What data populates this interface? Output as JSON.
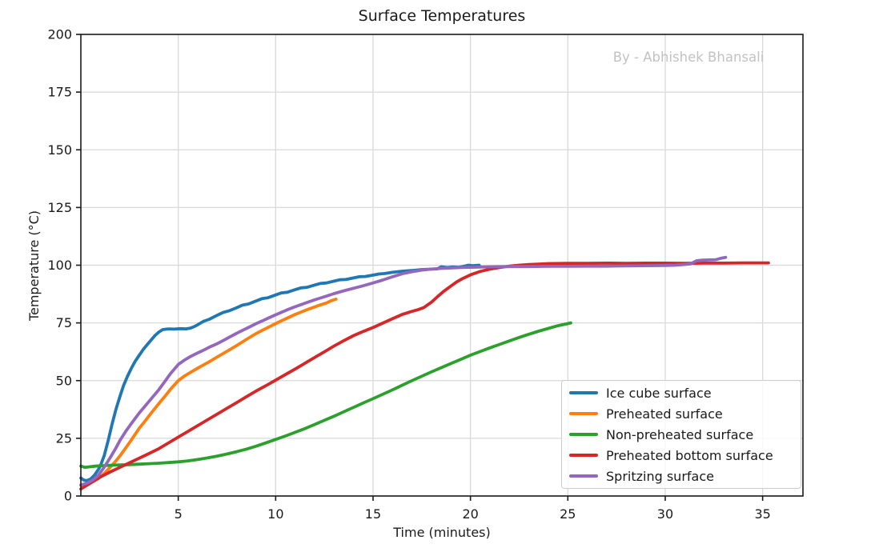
{
  "figure": {
    "title": "Surface Temperatures",
    "watermark": "By - Abhishek Bhansali",
    "xlabel": "Time (minutes)",
    "ylabel": "Temperature (°C)"
  },
  "chart_data": {
    "type": "line",
    "title": "Surface Temperatures",
    "xlabel": "Time (minutes)",
    "ylabel": "Temperature (°C)",
    "xlim": [
      0,
      37.07
    ],
    "ylim": [
      0,
      200
    ],
    "xticks": [
      5,
      10,
      15,
      20,
      25,
      30,
      35
    ],
    "yticks": [
      0,
      25,
      50,
      75,
      100,
      125,
      150,
      175,
      200
    ],
    "grid": true,
    "legend_position": "lower right",
    "grid_color": "#d9d9d9",
    "axis_color": "#1a1a1a",
    "watermark": "By - Abhishek Bhansali",
    "series": [
      {
        "name": "Ice cube surface",
        "color": "#1f77b4",
        "points": [
          [
            0,
            7.8
          ],
          [
            0.15,
            6.9
          ],
          [
            0.3,
            6.7
          ],
          [
            0.5,
            7.4
          ],
          [
            0.7,
            9
          ],
          [
            0.9,
            11.5
          ],
          [
            1,
            13
          ],
          [
            1.2,
            17.5
          ],
          [
            1.4,
            24
          ],
          [
            1.6,
            31
          ],
          [
            1.8,
            37.5
          ],
          [
            2,
            43
          ],
          [
            2.2,
            48
          ],
          [
            2.4,
            52
          ],
          [
            2.6,
            55.5
          ],
          [
            2.8,
            58.5
          ],
          [
            3,
            61
          ],
          [
            3.2,
            63.5
          ],
          [
            3.4,
            65.5
          ],
          [
            3.6,
            67.5
          ],
          [
            3.8,
            69.5
          ],
          [
            4,
            71
          ],
          [
            4.2,
            72.1
          ],
          [
            4.5,
            72.4
          ],
          [
            4.8,
            72.3
          ],
          [
            5.1,
            72.5
          ],
          [
            5.4,
            72.4
          ],
          [
            5.6,
            72.7
          ],
          [
            5.8,
            73.3
          ],
          [
            6,
            74.2
          ],
          [
            6.3,
            75.7
          ],
          [
            6.6,
            76.6
          ],
          [
            7,
            78.3
          ],
          [
            7.3,
            79.5
          ],
          [
            7.6,
            80.2
          ],
          [
            8,
            81.6
          ],
          [
            8.3,
            82.7
          ],
          [
            8.6,
            83.2
          ],
          [
            9,
            84.5
          ],
          [
            9.3,
            85.5
          ],
          [
            9.6,
            85.9
          ],
          [
            10,
            87.1
          ],
          [
            10.3,
            88
          ],
          [
            10.6,
            88.3
          ],
          [
            11,
            89.4
          ],
          [
            11.3,
            90.2
          ],
          [
            11.6,
            90.4
          ],
          [
            12,
            91.4
          ],
          [
            12.3,
            92.1
          ],
          [
            12.6,
            92.3
          ],
          [
            13,
            93.1
          ],
          [
            13.3,
            93.7
          ],
          [
            13.6,
            93.8
          ],
          [
            14,
            94.5
          ],
          [
            14.3,
            95
          ],
          [
            14.6,
            95.1
          ],
          [
            15,
            95.7
          ],
          [
            15.3,
            96.2
          ],
          [
            15.6,
            96.4
          ],
          [
            16,
            96.9
          ],
          [
            16.5,
            97.4
          ],
          [
            17,
            97.7
          ],
          [
            17.5,
            98.1
          ],
          [
            18,
            98.3
          ],
          [
            18.3,
            98.4
          ],
          [
            18.5,
            99.3
          ],
          [
            18.8,
            99
          ],
          [
            19.1,
            99.2
          ],
          [
            19.4,
            99.1
          ],
          [
            19.6,
            99.4
          ],
          [
            19.9,
            100
          ],
          [
            20.1,
            99.8
          ],
          [
            20.45,
            100
          ]
        ]
      },
      {
        "name": "Preheated surface",
        "color": "#ff7f0e",
        "points": [
          [
            0,
            4.6
          ],
          [
            0.3,
            5.1
          ],
          [
            0.6,
            6.1
          ],
          [
            0.9,
            7.6
          ],
          [
            1.2,
            9.8
          ],
          [
            1.5,
            12.4
          ],
          [
            1.8,
            15.2
          ],
          [
            2,
            17.3
          ],
          [
            2.3,
            20.8
          ],
          [
            2.6,
            24.4
          ],
          [
            3,
            29.4
          ],
          [
            3.3,
            32.5
          ],
          [
            3.6,
            35.8
          ],
          [
            4,
            40
          ],
          [
            4.3,
            43
          ],
          [
            4.6,
            46.2
          ],
          [
            5,
            50
          ],
          [
            5.3,
            51.9
          ],
          [
            5.6,
            53.4
          ],
          [
            6,
            55.4
          ],
          [
            6.3,
            56.8
          ],
          [
            6.6,
            58.2
          ],
          [
            7,
            60.2
          ],
          [
            7.3,
            61.7
          ],
          [
            7.6,
            63.2
          ],
          [
            8,
            65.2
          ],
          [
            8.3,
            66.8
          ],
          [
            8.6,
            68.4
          ],
          [
            9,
            70.4
          ],
          [
            9.3,
            71.7
          ],
          [
            9.6,
            73
          ],
          [
            10,
            74.7
          ],
          [
            10.3,
            75.9
          ],
          [
            10.6,
            77.1
          ],
          [
            11,
            78.7
          ],
          [
            11.3,
            79.7
          ],
          [
            11.6,
            80.7
          ],
          [
            12,
            81.9
          ],
          [
            12.3,
            82.8
          ],
          [
            12.6,
            83.6
          ],
          [
            12.9,
            84.8
          ],
          [
            13.1,
            85.3
          ]
        ]
      },
      {
        "name": "Non-preheated surface",
        "color": "#2ca02c",
        "points": [
          [
            0,
            13
          ],
          [
            0.2,
            12.4
          ],
          [
            0.4,
            12.6
          ],
          [
            0.7,
            12.9
          ],
          [
            1,
            13.1
          ],
          [
            1.5,
            13.3
          ],
          [
            2,
            13.5
          ],
          [
            2.5,
            13.6
          ],
          [
            3,
            13.8
          ],
          [
            3.5,
            14
          ],
          [
            4,
            14.2
          ],
          [
            4.5,
            14.5
          ],
          [
            5,
            14.8
          ],
          [
            5.5,
            15.2
          ],
          [
            6,
            15.8
          ],
          [
            6.5,
            16.5
          ],
          [
            7,
            17.3
          ],
          [
            7.5,
            18.2
          ],
          [
            8,
            19.2
          ],
          [
            8.5,
            20.3
          ],
          [
            9,
            21.6
          ],
          [
            9.5,
            23
          ],
          [
            10,
            24.5
          ],
          [
            10.5,
            26
          ],
          [
            11,
            27.6
          ],
          [
            11.5,
            29.2
          ],
          [
            12,
            31
          ],
          [
            12.5,
            32.8
          ],
          [
            13,
            34.6
          ],
          [
            13.5,
            36.5
          ],
          [
            14,
            38.4
          ],
          [
            14.5,
            40.3
          ],
          [
            15,
            42.2
          ],
          [
            15.5,
            44.1
          ],
          [
            16,
            46
          ],
          [
            16.5,
            48
          ],
          [
            17,
            50
          ],
          [
            17.5,
            51.9
          ],
          [
            18,
            53.8
          ],
          [
            18.5,
            55.6
          ],
          [
            19,
            57.4
          ],
          [
            19.5,
            59.2
          ],
          [
            20,
            61
          ],
          [
            20.5,
            62.6
          ],
          [
            21,
            64.2
          ],
          [
            21.5,
            65.7
          ],
          [
            22,
            67.2
          ],
          [
            22.5,
            68.7
          ],
          [
            23,
            70.1
          ],
          [
            23.5,
            71.4
          ],
          [
            24,
            72.6
          ],
          [
            24.5,
            73.8
          ],
          [
            25,
            74.7
          ],
          [
            25.15,
            75
          ]
        ]
      },
      {
        "name": "Preheated bottom surface",
        "color": "#d62728",
        "points": [
          [
            0,
            3
          ],
          [
            0.5,
            5.6
          ],
          [
            1,
            8.2
          ],
          [
            1.5,
            10.4
          ],
          [
            2,
            12.4
          ],
          [
            2.5,
            14.4
          ],
          [
            3,
            16.4
          ],
          [
            3.5,
            18.4
          ],
          [
            4,
            20.5
          ],
          [
            4.5,
            23
          ],
          [
            5,
            25.5
          ],
          [
            5.5,
            28
          ],
          [
            6,
            30.5
          ],
          [
            6.5,
            33
          ],
          [
            7,
            35.5
          ],
          [
            7.5,
            38
          ],
          [
            8,
            40.5
          ],
          [
            8.5,
            43
          ],
          [
            9,
            45.5
          ],
          [
            9.5,
            47.8
          ],
          [
            10,
            50.2
          ],
          [
            10.5,
            52.6
          ],
          [
            11,
            55
          ],
          [
            11.5,
            57.5
          ],
          [
            12,
            60
          ],
          [
            12.5,
            62.5
          ],
          [
            13,
            65
          ],
          [
            13.5,
            67.3
          ],
          [
            14,
            69.5
          ],
          [
            14.5,
            71.3
          ],
          [
            15,
            73
          ],
          [
            15.5,
            74.9
          ],
          [
            16,
            76.8
          ],
          [
            16.5,
            78.7
          ],
          [
            17,
            80
          ],
          [
            17.3,
            80.7
          ],
          [
            17.6,
            81.6
          ],
          [
            18,
            84
          ],
          [
            18.3,
            86.3
          ],
          [
            18.6,
            88.5
          ],
          [
            19,
            91
          ],
          [
            19.3,
            92.8
          ],
          [
            19.6,
            94.2
          ],
          [
            20,
            95.8
          ],
          [
            20.5,
            97.3
          ],
          [
            21,
            98.3
          ],
          [
            21.5,
            99
          ],
          [
            22,
            99.6
          ],
          [
            22.5,
            100
          ],
          [
            23,
            100.3
          ],
          [
            23.5,
            100.5
          ],
          [
            24,
            100.7
          ],
          [
            25,
            100.8
          ],
          [
            26,
            100.8
          ],
          [
            27,
            100.9
          ],
          [
            28,
            100.8
          ],
          [
            29,
            100.9
          ],
          [
            30,
            100.9
          ],
          [
            31,
            100.8
          ],
          [
            32,
            100.9
          ],
          [
            33,
            100.9
          ],
          [
            34,
            101
          ],
          [
            35.3,
            101
          ]
        ]
      },
      {
        "name": "Spritzing surface",
        "color": "#9467bd",
        "points": [
          [
            0,
            4.8
          ],
          [
            0.3,
            5.5
          ],
          [
            0.6,
            6.8
          ],
          [
            0.9,
            9
          ],
          [
            1.2,
            12.5
          ],
          [
            1.5,
            16.5
          ],
          [
            1.8,
            20.8
          ],
          [
            2,
            24
          ],
          [
            2.3,
            28
          ],
          [
            2.6,
            31.5
          ],
          [
            3,
            36
          ],
          [
            3.3,
            39
          ],
          [
            3.6,
            42
          ],
          [
            4,
            46
          ],
          [
            4.3,
            49.5
          ],
          [
            4.6,
            53
          ],
          [
            5,
            57
          ],
          [
            5.3,
            58.8
          ],
          [
            5.6,
            60.3
          ],
          [
            6,
            62
          ],
          [
            6.3,
            63.2
          ],
          [
            6.6,
            64.5
          ],
          [
            7,
            66
          ],
          [
            7.3,
            67.3
          ],
          [
            7.6,
            68.7
          ],
          [
            8,
            70.5
          ],
          [
            8.3,
            71.8
          ],
          [
            8.6,
            73
          ],
          [
            9,
            74.7
          ],
          [
            9.3,
            75.8
          ],
          [
            9.6,
            77
          ],
          [
            10,
            78.5
          ],
          [
            10.3,
            79.6
          ],
          [
            10.6,
            80.7
          ],
          [
            11,
            82
          ],
          [
            11.3,
            82.9
          ],
          [
            11.6,
            83.8
          ],
          [
            12,
            85
          ],
          [
            12.3,
            85.8
          ],
          [
            12.6,
            86.6
          ],
          [
            13,
            87.7
          ],
          [
            13.5,
            88.9
          ],
          [
            14,
            90
          ],
          [
            14.5,
            91.1
          ],
          [
            15,
            92.3
          ],
          [
            15.5,
            93.6
          ],
          [
            16,
            95
          ],
          [
            16.5,
            96.3
          ],
          [
            17,
            97.2
          ],
          [
            17.5,
            97.9
          ],
          [
            18,
            98.3
          ],
          [
            18.5,
            98.6
          ],
          [
            19,
            98.8
          ],
          [
            19.5,
            99
          ],
          [
            20,
            99.1
          ],
          [
            20.5,
            99.2
          ],
          [
            21,
            99.3
          ],
          [
            22,
            99.4
          ],
          [
            23,
            99.4
          ],
          [
            24,
            99.5
          ],
          [
            25,
            99.5
          ],
          [
            26,
            99.6
          ],
          [
            27,
            99.6
          ],
          [
            28,
            99.7
          ],
          [
            29,
            99.8
          ],
          [
            30,
            99.9
          ],
          [
            30.5,
            100
          ],
          [
            31,
            100.3
          ],
          [
            31.3,
            100.6
          ],
          [
            31.6,
            101.9
          ],
          [
            31.9,
            102.2
          ],
          [
            32.3,
            102.3
          ],
          [
            32.6,
            102.4
          ],
          [
            32.9,
            103.1
          ],
          [
            33.1,
            103.4
          ]
        ]
      }
    ]
  }
}
